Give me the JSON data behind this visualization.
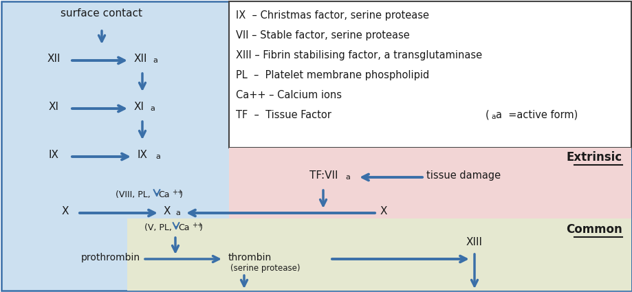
{
  "fig_width": 9.2,
  "fig_height": 4.25,
  "dpi": 100,
  "bg_color": "#cce0f0",
  "legend_bg": "#ffffff",
  "extrinsic_bg": "#f2d5d5",
  "common_bg": "#e5e8d0",
  "arrow_color": "#3a6fa8",
  "text_color": "#1a1a1a",
  "border_color": "#3a6fa8",
  "legend_lines": [
    "IX  – Christmas factor, serine protease",
    "VII – Stable factor, serine protease",
    "XIII – Fibrin stabilising factor, a transglutaminase",
    "PL  –  Platelet membrane phospholipid",
    "Ca++ – Calcium ions",
    "TF  –  Tissue Factor"
  ],
  "active_form_note": "(  a  =active form)"
}
